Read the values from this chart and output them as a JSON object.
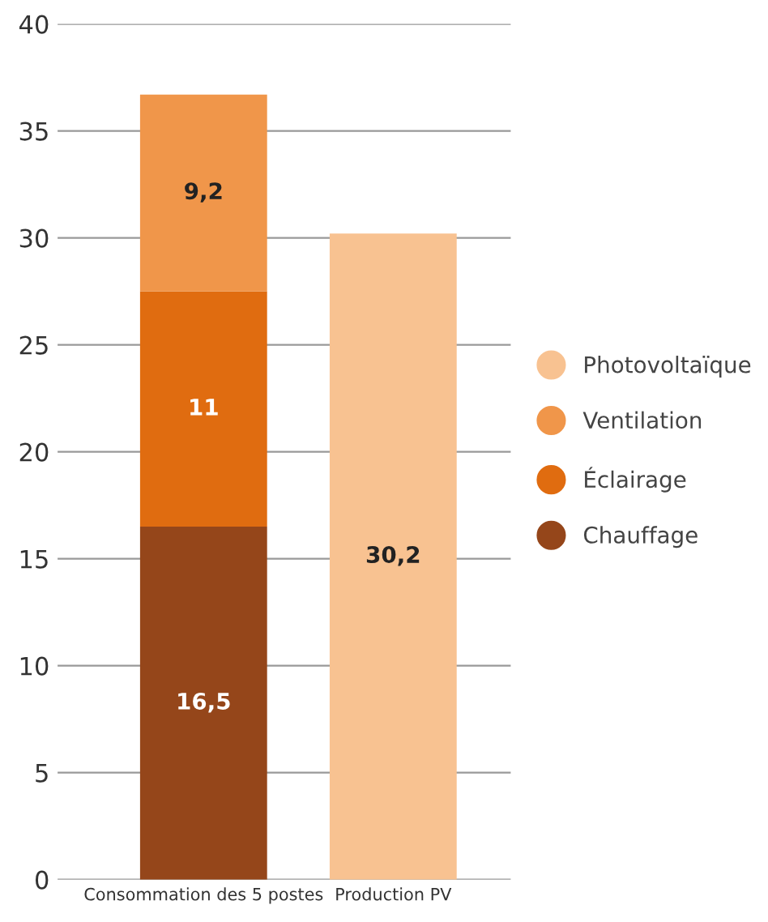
{
  "chart_data": {
    "type": "bar",
    "stacked": true,
    "categories": [
      "Consommation des 5 postes",
      "Production PV"
    ],
    "series": [
      {
        "name": "Chauffage",
        "color": "#95461a",
        "values": [
          16.5,
          null
        ],
        "value_labels": [
          "16,5",
          null
        ]
      },
      {
        "name": "Éclairage",
        "color": "#e06c10",
        "values": [
          11,
          null
        ],
        "value_labels": [
          "11",
          null
        ]
      },
      {
        "name": "Ventilation",
        "color": "#f0964a",
        "values": [
          9.2,
          null
        ],
        "value_labels": [
          "9,2",
          null
        ]
      },
      {
        "name": "Photovoltaïque",
        "color": "#f8c291",
        "values": [
          null,
          30.2
        ],
        "value_labels": [
          null,
          "30,2"
        ]
      }
    ],
    "ylim": [
      0,
      40
    ],
    "yticks": [
      0,
      5,
      10,
      15,
      20,
      25,
      30,
      35,
      40
    ],
    "grid": "y",
    "legend": "right",
    "marker": "circle"
  }
}
